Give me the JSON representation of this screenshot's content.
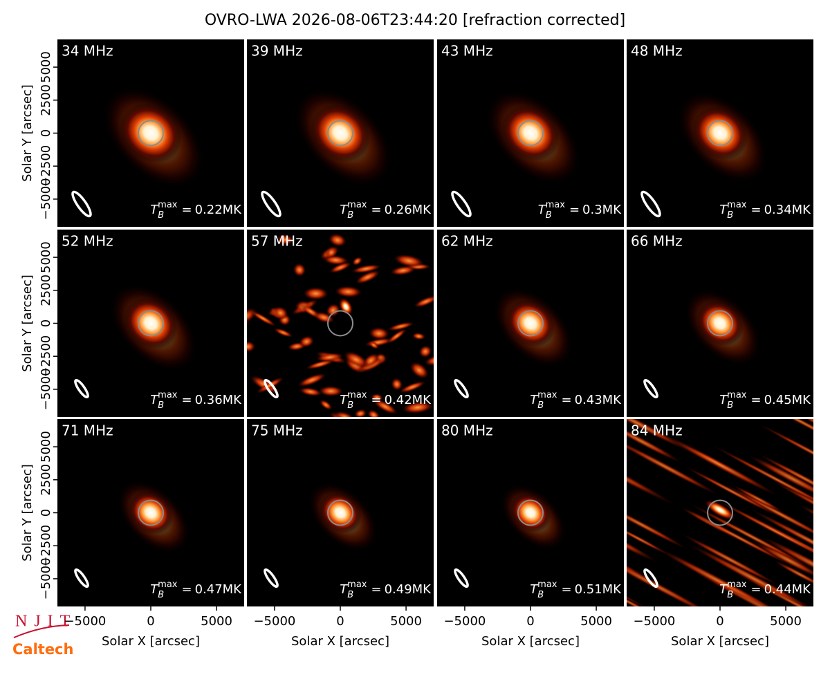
{
  "chart_data": {
    "type": "image-grid",
    "title": "OVRO-LWA 2026-08-06T23:44:20 [refraction corrected]",
    "xlabel": "Solar X [arcsec]",
    "ylabel": "Solar Y [arcsec]",
    "xlim": [
      -7100,
      7100
    ],
    "ylim": [
      -7100,
      7100
    ],
    "xticks": [
      {
        "value": -5000,
        "label": "−5000"
      },
      0,
      5000
    ],
    "yticks": [
      {
        "value": -5000,
        "label": "−5000"
      },
      {
        "value": -2500,
        "label": "−2500"
      },
      0,
      2500,
      5000
    ],
    "tb_symbol": "T",
    "tb_sub": "B",
    "tb_sup": "max",
    "tb_eq": "=",
    "panels": [
      {
        "freq": "34 MHz",
        "tmax": "0.22MK"
      },
      {
        "freq": "39 MHz",
        "tmax": "0.26MK"
      },
      {
        "freq": "43 MHz",
        "tmax": "0.3MK"
      },
      {
        "freq": "48 MHz",
        "tmax": "0.34MK"
      },
      {
        "freq": "52 MHz",
        "tmax": "0.36MK"
      },
      {
        "freq": "57 MHz",
        "tmax": "0.42MK"
      },
      {
        "freq": "62 MHz",
        "tmax": "0.43MK"
      },
      {
        "freq": "66 MHz",
        "tmax": "0.45MK"
      },
      {
        "freq": "71 MHz",
        "tmax": "0.47MK"
      },
      {
        "freq": "75 MHz",
        "tmax": "0.49MK"
      },
      {
        "freq": "80 MHz",
        "tmax": "0.51MK"
      },
      {
        "freq": "84 MHz",
        "tmax": "0.44MK"
      }
    ],
    "logos": [
      "NJIT",
      "Caltech"
    ]
  }
}
